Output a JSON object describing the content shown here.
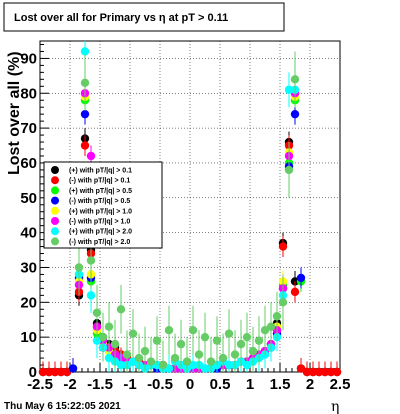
{
  "chart_data": {
    "type": "scatter",
    "title": "Lost over all for Primary vs   η at pT > 0.11",
    "xlabel": "η",
    "ylabel": "Lost over all (%)",
    "xlim": [
      -2.5,
      2.5
    ],
    "ylim": [
      0,
      95
    ],
    "x_ticks": [
      "-2.5",
      "-2",
      "-1.5",
      "-1",
      "-0.5",
      "0",
      "0.5",
      "1",
      "1.5",
      "2",
      "2.5"
    ],
    "y_ticks": [
      "0",
      "10",
      "20",
      "30",
      "40",
      "50",
      "60",
      "70",
      "80",
      "90"
    ],
    "grid": true,
    "legend_position": "left-middle",
    "series": [
      {
        "name": "(+) with pT/|q| > 0.1",
        "color": "#000000",
        "x": [
          -2.45,
          -2.35,
          -2.25,
          -2.15,
          -2.05,
          -1.95,
          -1.85,
          -1.75,
          -1.65,
          -1.55,
          -1.45,
          -1.35,
          -1.25,
          -1.15,
          -1.05,
          -0.95,
          -0.85,
          -0.75,
          -0.65,
          -0.55,
          -0.45,
          -0.35,
          -0.25,
          -0.15,
          -0.05,
          0.05,
          0.15,
          0.25,
          0.35,
          0.45,
          0.55,
          0.65,
          0.75,
          0.85,
          0.95,
          1.05,
          1.15,
          1.25,
          1.35,
          1.45,
          1.55,
          1.65,
          1.75,
          1.85,
          1.95,
          2.05,
          2.15,
          2.25,
          2.35,
          2.45
        ],
        "values": [
          0,
          0,
          0,
          0,
          0,
          1,
          22,
          67,
          35,
          14,
          10,
          8,
          7,
          5,
          4,
          3,
          3,
          2,
          2,
          2,
          2,
          1,
          1,
          1,
          1,
          1,
          1,
          1,
          1,
          2,
          2,
          2,
          2,
          3,
          3,
          4,
          5,
          6,
          8,
          14,
          37,
          66,
          26,
          1,
          0,
          0,
          0,
          0,
          0,
          0
        ]
      },
      {
        "name": "(-) with pT/|q| > 0.1",
        "color": "#ff0000",
        "x": [
          -2.45,
          -2.35,
          -2.25,
          -2.15,
          -2.05,
          -1.95,
          -1.85,
          -1.75,
          -1.65,
          -1.55,
          -1.45,
          -1.35,
          -1.25,
          -1.15,
          -1.05,
          -0.95,
          -0.85,
          -0.75,
          -0.65,
          -0.55,
          -0.45,
          -0.35,
          -0.25,
          -0.15,
          -0.05,
          0.05,
          0.15,
          0.25,
          0.35,
          0.45,
          0.55,
          0.65,
          0.75,
          0.85,
          0.95,
          1.05,
          1.15,
          1.25,
          1.35,
          1.45,
          1.55,
          1.65,
          1.75,
          1.85,
          1.95,
          2.05,
          2.15,
          2.25,
          2.35,
          2.45
        ],
        "values": [
          0,
          0,
          0,
          0,
          0,
          1,
          23,
          65,
          34,
          13,
          9,
          7,
          6,
          5,
          4,
          3,
          3,
          2,
          2,
          2,
          2,
          1,
          1,
          1,
          1,
          1,
          1,
          1,
          1,
          2,
          2,
          2,
          2,
          3,
          3,
          4,
          5,
          6,
          8,
          13,
          36,
          65,
          23,
          1,
          0,
          0,
          0,
          0,
          0,
          0
        ]
      },
      {
        "name": "(+) with pT/|q| > 0.5",
        "color": "#00ff00",
        "x": [
          -1.95,
          -1.85,
          -1.75,
          -1.65,
          -1.55,
          -1.45,
          -1.35,
          -1.25,
          -1.15,
          -1.05,
          -0.95,
          -0.85,
          -0.75,
          -0.65,
          -0.55,
          -0.45,
          -0.35,
          -0.25,
          -0.15,
          -0.05,
          0.05,
          0.15,
          0.25,
          0.35,
          0.45,
          0.55,
          0.65,
          0.75,
          0.85,
          0.95,
          1.05,
          1.15,
          1.25,
          1.35,
          1.45,
          1.55,
          1.65,
          1.75,
          1.85
        ],
        "values": [
          1,
          28,
          78,
          26,
          11,
          8,
          6,
          5,
          4,
          3,
          3,
          2,
          2,
          2,
          2,
          1,
          1,
          1,
          1,
          1,
          1,
          1,
          1,
          1,
          2,
          2,
          2,
          2,
          3,
          3,
          4,
          5,
          6,
          8,
          12,
          25,
          60,
          78,
          26
        ]
      },
      {
        "name": "(-) with pT/|q| > 0.5",
        "color": "#0000ff",
        "x": [
          -1.95,
          -1.85,
          -1.75,
          -1.65,
          -1.55,
          -1.45,
          -1.35,
          -1.25,
          -1.15,
          -1.05,
          -0.95,
          -0.85,
          -0.75,
          -0.65,
          -0.55,
          -0.45,
          -0.35,
          -0.25,
          -0.15,
          -0.05,
          0.05,
          0.15,
          0.25,
          0.35,
          0.45,
          0.55,
          0.65,
          0.75,
          0.85,
          0.95,
          1.05,
          1.15,
          1.25,
          1.35,
          1.45,
          1.55,
          1.65,
          1.75,
          1.85
        ],
        "values": [
          1,
          27,
          74,
          27,
          12,
          7,
          6,
          5,
          4,
          3,
          3,
          2,
          2,
          2,
          1,
          1,
          1,
          1,
          1,
          1,
          1,
          1,
          1,
          1,
          1,
          2,
          2,
          2,
          3,
          3,
          4,
          5,
          6,
          7,
          11,
          24,
          59,
          74,
          27
        ]
      },
      {
        "name": "(+) with pT/|q| > 1.0",
        "color": "#ffff00",
        "x": [
          -1.85,
          -1.75,
          -1.65,
          -1.55,
          -1.45,
          -1.35,
          -1.25,
          -1.15,
          -1.05,
          -0.95,
          -0.85,
          -0.75,
          -0.65,
          -0.55,
          -0.45,
          -0.35,
          -0.25,
          -0.15,
          -0.05,
          0.05,
          0.15,
          0.25,
          0.35,
          0.45,
          0.55,
          0.65,
          0.75,
          0.85,
          0.95,
          1.05,
          1.15,
          1.25,
          1.35,
          1.45,
          1.55,
          1.65,
          1.75
        ],
        "values": [
          26,
          79,
          28,
          12,
          8,
          6,
          5,
          4,
          3,
          3,
          2,
          2,
          2,
          2,
          1,
          1,
          1,
          1,
          1,
          1,
          1,
          1,
          1,
          2,
          2,
          2,
          2,
          3,
          3,
          4,
          5,
          6,
          8,
          13,
          26,
          63,
          79
        ]
      },
      {
        "name": "(-) with pT/|q| > 1.0",
        "color": "#ff00ff",
        "x": [
          -1.85,
          -1.75,
          -1.65,
          -1.55,
          -1.45,
          -1.35,
          -1.25,
          -1.15,
          -1.05,
          -0.95,
          -0.85,
          -0.75,
          -0.65,
          -0.55,
          -0.45,
          -0.35,
          -0.25,
          -0.15,
          -0.05,
          0.05,
          0.15,
          0.25,
          0.35,
          0.45,
          0.55,
          0.65,
          0.75,
          0.85,
          0.95,
          1.05,
          1.15,
          1.25,
          1.35,
          1.45,
          1.55,
          1.65,
          1.75
        ],
        "values": [
          25,
          80,
          62,
          13,
          9,
          7,
          5,
          4,
          3,
          3,
          2,
          2,
          2,
          2,
          1,
          1,
          1,
          1,
          1,
          1,
          1,
          1,
          1,
          2,
          2,
          2,
          2,
          3,
          3,
          4,
          5,
          6,
          8,
          12,
          24,
          62,
          80
        ]
      },
      {
        "name": "(+) with pT/|q| > 2.0",
        "color": "#00ffff",
        "x": [
          -1.85,
          -1.75,
          -1.65,
          -1.55,
          -1.45,
          -1.35,
          -1.25,
          -1.15,
          -1.05,
          -0.95,
          -0.85,
          -0.75,
          -0.65,
          -0.55,
          -0.45,
          -0.35,
          -0.25,
          -0.15,
          -0.05,
          0.05,
          0.15,
          0.25,
          0.35,
          0.45,
          0.55,
          0.65,
          0.75,
          0.85,
          0.95,
          1.05,
          1.15,
          1.25,
          1.35,
          1.45,
          1.55,
          1.65,
          1.75
        ],
        "values": [
          28,
          92,
          22,
          9,
          7,
          4,
          3,
          2,
          2,
          3,
          2,
          1,
          2,
          2,
          1,
          1,
          3,
          2,
          1,
          2,
          2,
          1,
          1,
          2,
          3,
          2,
          2,
          3,
          2,
          3,
          4,
          5,
          7,
          10,
          22,
          81,
          81
        ]
      },
      {
        "name": "(-) with pT/|q| > 2.0",
        "color": "#66cc66",
        "x": [
          -1.85,
          -1.75,
          -1.65,
          -1.55,
          -1.45,
          -1.35,
          -1.25,
          -1.15,
          -1.05,
          -0.95,
          -0.85,
          -0.75,
          -0.65,
          -0.55,
          -0.45,
          -0.35,
          -0.25,
          -0.15,
          -0.05,
          0.05,
          0.15,
          0.25,
          0.35,
          0.45,
          0.55,
          0.65,
          0.75,
          0.85,
          0.95,
          1.05,
          1.15,
          1.25,
          1.35,
          1.45,
          1.55,
          1.65,
          1.75
        ],
        "values": [
          30,
          83,
          32,
          17,
          10,
          13,
          8,
          18,
          5,
          11,
          4,
          6,
          3,
          9,
          2,
          12,
          4,
          8,
          3,
          12,
          5,
          10,
          3,
          9,
          4,
          11,
          5,
          8,
          10,
          6,
          9,
          12,
          13,
          16,
          20,
          58,
          84
        ]
      }
    ]
  },
  "footer": {
    "timestamp": "Thu May  6 15:22:05 2021"
  }
}
